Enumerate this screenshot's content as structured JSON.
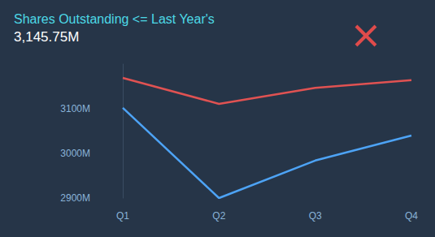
{
  "chart_data": {
    "type": "line",
    "title": "Shares Outstanding <= Last Year's",
    "subtitle": "3,145.75M",
    "categories": [
      "Q1",
      "Q2",
      "Q3",
      "Q4"
    ],
    "series": [
      {
        "color": "#e05252",
        "values": [
          3169,
          3111,
          3147,
          3164
        ]
      },
      {
        "color": "#4da3f5",
        "values": [
          3102,
          2900,
          2984,
          3040
        ]
      }
    ],
    "ylim": [
      2900,
      3200
    ],
    "yticks": [
      {
        "value": 2900,
        "label": "2900M"
      },
      {
        "value": 3000,
        "label": "3000M"
      },
      {
        "value": 3100,
        "label": "3100M"
      }
    ],
    "grid": false
  }
}
